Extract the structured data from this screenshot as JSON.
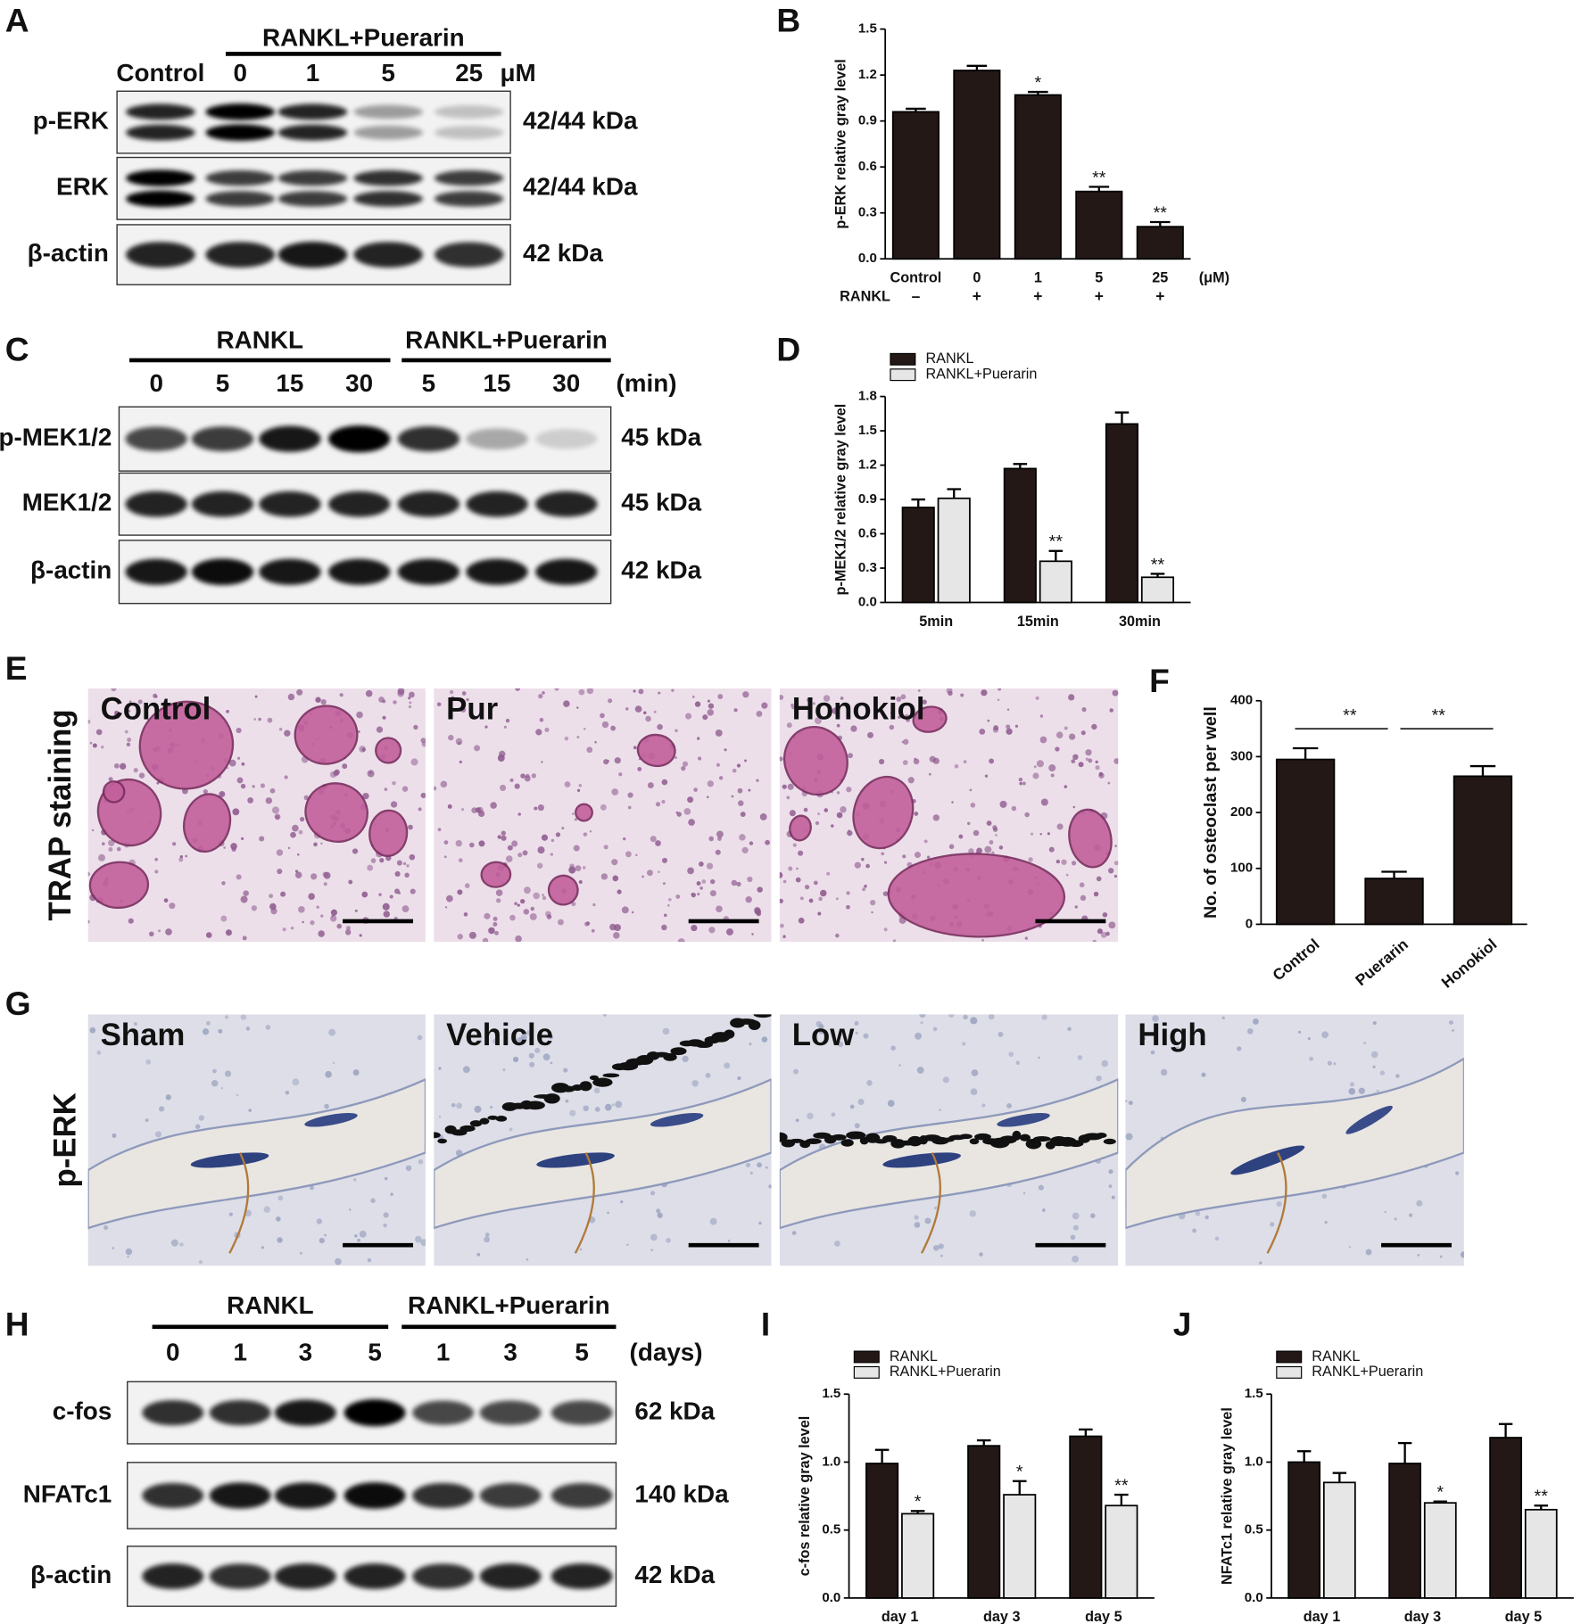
{
  "panel_letters": [
    "A",
    "B",
    "C",
    "D",
    "E",
    "F",
    "G",
    "H",
    "I",
    "J"
  ],
  "blots": [
    {
      "groups": [
        {
          "label": "RANKL+Puerarin"
        }
      ],
      "lanes": [
        "Control",
        "0",
        "1",
        "5",
        "25"
      ],
      "unit": "μM",
      "rows": [
        {
          "name": "p-ERK",
          "size": "42/44 kDa"
        },
        {
          "name": "ERK",
          "size": "42/44 kDa"
        },
        {
          "name": "β-actin",
          "size": "42 kDa"
        }
      ]
    },
    {
      "groups": [
        {
          "label": "RANKL"
        },
        {
          "label": "RANKL+Puerarin"
        }
      ],
      "lanes": [
        "0",
        "5",
        "15",
        "30",
        "5",
        "15",
        "30"
      ],
      "unit": "(min)",
      "rows": [
        {
          "name": "p-MEK1/2",
          "size": "45 kDa"
        },
        {
          "name": "MEK1/2",
          "size": "45 kDa"
        },
        {
          "name": "β-actin",
          "size": "42 kDa"
        }
      ]
    },
    {
      "groups": [
        {
          "label": "RANKL"
        },
        {
          "label": "RANKL+Puerarin"
        }
      ],
      "lanes": [
        "0",
        "1",
        "3",
        "5",
        "1",
        "3",
        "5"
      ],
      "unit": "(days)",
      "rows": [
        {
          "name": "c-fos",
          "size": "62 kDa"
        },
        {
          "name": "NFATc1",
          "size": "140 kDa"
        },
        {
          "name": "β-actin",
          "size": "42 kDa"
        }
      ]
    }
  ],
  "images": [
    {
      "ylabel": "TRAP staining",
      "panels": [
        "Control",
        "Pur",
        "Honokiol"
      ]
    },
    {
      "ylabel": "p-ERK",
      "panels": [
        "Sham",
        "Vehicle",
        "Low",
        "High"
      ]
    }
  ],
  "chart_data": [
    {
      "type": "bar",
      "ylabel": "p-ERK relative gray level",
      "categories": [
        "Control",
        "0",
        "1",
        "5",
        "25"
      ],
      "unit": "(μM)",
      "condition": {
        "name": "RANKL",
        "values": [
          "–",
          "+",
          "+",
          "+",
          "+"
        ]
      },
      "values": [
        0.96,
        1.23,
        1.07,
        0.44,
        0.21
      ],
      "errors": [
        0.02,
        0.03,
        0.02,
        0.03,
        0.03
      ],
      "significance": [
        null,
        null,
        "*",
        "**",
        "**"
      ],
      "color": "#231815",
      "ylim": [
        0,
        1.5
      ],
      "yticks": [
        {
          "value": 0,
          "label": "0.0"
        },
        0.3,
        0.6,
        0.9,
        1.2,
        1.5
      ]
    },
    {
      "type": "grouped_bar",
      "ylabel": "p-MEK1/2 relative gray level",
      "categories": [
        "5min",
        "15min",
        "30min"
      ],
      "series": [
        {
          "name": "RANKL",
          "color": "#231815",
          "values": [
            0.83,
            1.17,
            1.56
          ],
          "errors": [
            0.07,
            0.04,
            0.1
          ],
          "significance": [
            null,
            null,
            null
          ]
        },
        {
          "name": "RANKL+Puerarin",
          "color": "#e6e6e6",
          "values": [
            0.91,
            0.36,
            0.22
          ],
          "errors": [
            0.08,
            0.09,
            0.03
          ],
          "significance": [
            null,
            "**",
            "**"
          ]
        }
      ],
      "ylim": [
        0,
        1.8
      ],
      "yticks": [
        {
          "value": 0,
          "label": "0.0"
        },
        0.3,
        0.6,
        0.9,
        1.2,
        1.5,
        1.8
      ]
    },
    {
      "type": "bar",
      "ylabel": "No. of osteoclast per well",
      "categories": [
        "Control",
        "Puerarin",
        "Honokiol"
      ],
      "values": [
        295,
        82,
        265
      ],
      "errors": [
        20,
        12,
        18
      ],
      "significance": [
        null,
        null,
        null
      ],
      "color": "#231815",
      "comparisons": [
        {
          "groups": [
            "Control",
            "Puerarin"
          ],
          "label": "**"
        },
        {
          "groups": [
            "Puerarin",
            "Honokiol"
          ],
          "label": "**"
        }
      ],
      "ylim": [
        0,
        400
      ],
      "yticks": [
        0,
        100,
        200,
        300,
        400
      ]
    },
    {
      "type": "grouped_bar",
      "ylabel": "c-fos relative gray level",
      "categories": [
        "day 1",
        "day 3",
        "day 5"
      ],
      "series": [
        {
          "name": "RANKL",
          "color": "#231815",
          "values": [
            0.99,
            1.12,
            1.19
          ],
          "errors": [
            0.1,
            0.04,
            0.05
          ],
          "significance": [
            null,
            null,
            null
          ]
        },
        {
          "name": "RANKL+Puerarin",
          "color": "#e6e6e6",
          "values": [
            0.62,
            0.76,
            0.68
          ],
          "errors": [
            0.02,
            0.1,
            0.08
          ],
          "significance": [
            "*",
            "*",
            "**"
          ]
        }
      ],
      "ylim": [
        0,
        1.5
      ],
      "yticks": [
        {
          "value": 0,
          "label": "0.0"
        },
        0.5,
        {
          "value": 1,
          "label": "1.0"
        },
        1.5
      ]
    },
    {
      "type": "grouped_bar",
      "ylabel": "NFATc1 relative gray level",
      "categories": [
        "day 1",
        "day 3",
        "day 5"
      ],
      "series": [
        {
          "name": "RANKL",
          "color": "#231815",
          "values": [
            1.0,
            0.99,
            1.18
          ],
          "errors": [
            0.08,
            0.15,
            0.1
          ],
          "significance": [
            null,
            null,
            null
          ]
        },
        {
          "name": "RANKL+Puerarin",
          "color": "#e6e6e6",
          "values": [
            0.85,
            0.7,
            0.65
          ],
          "errors": [
            0.07,
            0.01,
            0.03
          ],
          "significance": [
            null,
            "*",
            "**"
          ]
        }
      ],
      "ylim": [
        0,
        1.5
      ],
      "yticks": [
        {
          "value": 0,
          "label": "0.0"
        },
        0.5,
        {
          "value": 1,
          "label": "1.0"
        },
        1.5
      ]
    }
  ]
}
